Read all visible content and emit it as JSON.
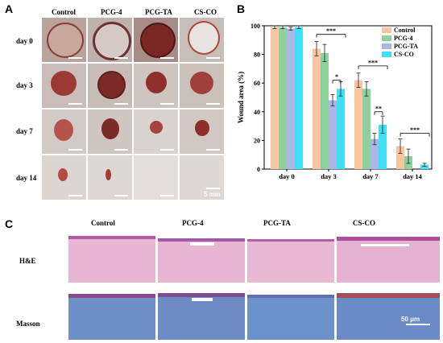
{
  "panels": {
    "a": "A",
    "b": "B",
    "c": "C"
  },
  "panel_a": {
    "columns": [
      "Control",
      "PCG-4",
      "PCG-TA",
      "CS-CO"
    ],
    "rows": [
      "day 0",
      "day 3",
      "day 7",
      "day 14"
    ],
    "scale_bar": "5 mm"
  },
  "panel_c": {
    "columns": [
      "Control",
      "PCG-4",
      "PCG-TA",
      "CS-CO"
    ],
    "rows": [
      "H&E",
      "Masson"
    ],
    "scale_bar": "50 μm"
  },
  "chart_data": {
    "type": "bar",
    "categories": [
      "day 0",
      "day 3",
      "day 7",
      "day 14"
    ],
    "ylabel": "Wound area (%)",
    "xlabel": "",
    "ylim": [
      0,
      100
    ],
    "yticks": [
      "0",
      "20",
      "40",
      "60",
      "80",
      "100"
    ],
    "legend_position": "top-right",
    "series": [
      {
        "name": "Control",
        "color": "#f7c59f",
        "values": [
          99,
          84,
          62,
          16
        ],
        "errors": [
          1,
          5,
          5,
          5
        ]
      },
      {
        "name": "PCG-4",
        "color": "#8fd19e",
        "values": [
          99,
          81,
          56,
          9
        ],
        "errors": [
          1,
          6,
          5,
          5
        ]
      },
      {
        "name": "PCG-TA",
        "color": "#a9b6e6",
        "values": [
          98,
          48,
          21,
          0
        ],
        "errors": [
          1,
          4,
          4,
          0
        ]
      },
      {
        "name": "CS-CO",
        "color": "#3fe0f5",
        "values": [
          99,
          56,
          31,
          3
        ],
        "errors": [
          1,
          5,
          6,
          1
        ]
      }
    ],
    "significance": [
      {
        "label": "***",
        "group": "day 3"
      },
      {
        "label": "*",
        "group": "day 3"
      },
      {
        "label": "***",
        "group": "day 7"
      },
      {
        "label": "**",
        "group": "day 7"
      },
      {
        "label": "***",
        "group": "day 14"
      }
    ]
  }
}
